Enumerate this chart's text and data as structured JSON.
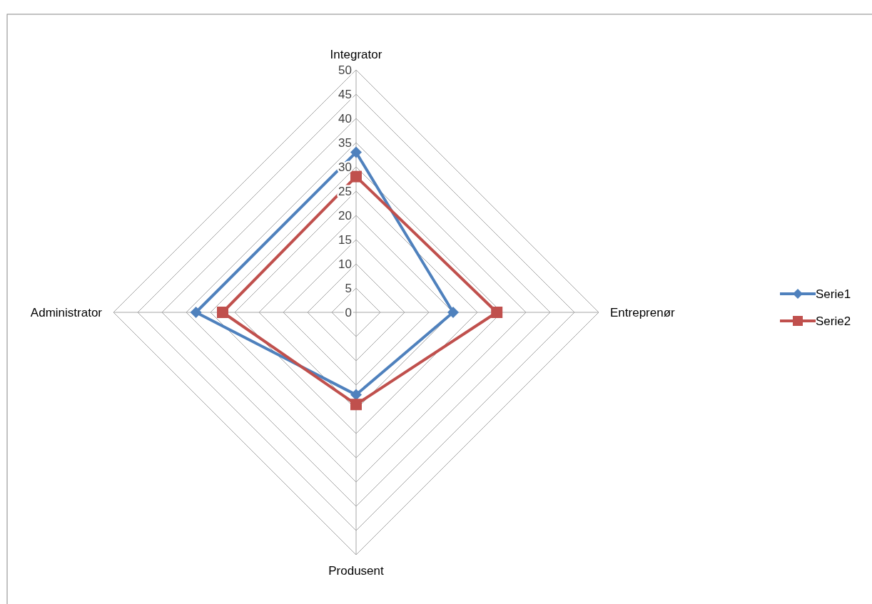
{
  "chart_data": {
    "type": "radar",
    "categories": [
      "Integrator",
      "Entreprenør",
      "Produsent",
      "Administrator"
    ],
    "series": [
      {
        "name": "Serie1",
        "color": "#4f81bd",
        "marker": "diamond",
        "values": [
          33,
          20,
          17,
          33
        ]
      },
      {
        "name": "Serie2",
        "color": "#c0504d",
        "marker": "square",
        "values": [
          28,
          29,
          19,
          27.5
        ]
      }
    ],
    "ylim": [
      0,
      50
    ],
    "yticks": [
      0,
      5,
      10,
      15,
      20,
      25,
      30,
      35,
      40,
      45,
      50
    ],
    "grid": true,
    "legend": "right"
  }
}
